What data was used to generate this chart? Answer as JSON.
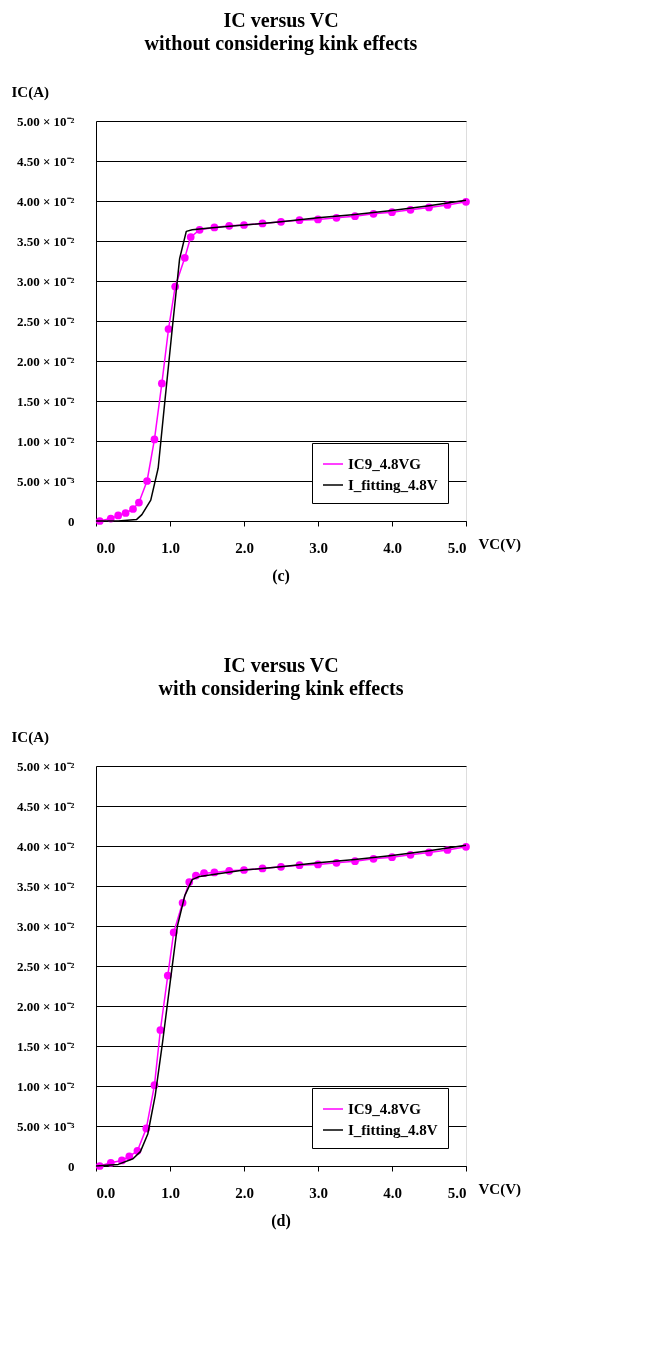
{
  "chart_data": [
    {
      "type": "line",
      "title": "IC versus VC",
      "subtitle": "without considering kink effects",
      "xlabel": "VC(V)",
      "ylabel": "IC(A)",
      "xlim": [
        0,
        5
      ],
      "ylim": [
        0,
        0.05
      ],
      "xticks": [
        {
          "value": 0,
          "label": "0.0"
        },
        {
          "value": 1,
          "label": "1.0"
        },
        {
          "value": 2,
          "label": "2.0"
        },
        {
          "value": 3,
          "label": "3.0"
        },
        {
          "value": 4,
          "label": "4.0"
        },
        {
          "value": 5,
          "label": "5.0"
        }
      ],
      "yticks": [
        0,
        {
          "value": 0.005,
          "label": "5.00 × 10⁻³"
        },
        {
          "value": 0.01,
          "label": "1.00 × 10⁻²"
        },
        {
          "value": 0.015,
          "label": "1.50 × 10⁻²"
        },
        {
          "value": 0.02,
          "label": "2.00 × 10⁻²"
        },
        {
          "value": 0.025,
          "label": "2.50 × 10⁻²"
        },
        {
          "value": 0.03,
          "label": "3.00 × 10⁻²"
        },
        {
          "value": 0.035,
          "label": "3.50 × 10⁻²"
        },
        {
          "value": 0.04,
          "label": "4.00 × 10⁻²"
        },
        {
          "value": 0.045,
          "label": "4.50 × 10⁻²"
        },
        {
          "value": 0.05,
          "label": "5.00 × 10⁻²"
        }
      ],
      "grid": "y",
      "legend": "bottom right",
      "line_style": "solid",
      "annotations": [
        "(c)"
      ],
      "series": [
        {
          "name": "IC9_4.8VG",
          "color": "#ff00ff",
          "marker": "circle",
          "x": [
            0.05,
            0.2,
            0.3,
            0.4,
            0.5,
            0.58,
            0.69,
            0.79,
            0.89,
            0.98,
            1.07,
            1.2,
            1.28,
            1.4,
            1.6,
            1.8,
            2.0,
            2.25,
            2.5,
            2.75,
            3.0,
            3.25,
            3.5,
            3.75,
            4.0,
            4.25,
            4.5,
            4.75,
            5.0
          ],
          "values": [
            0,
            0.0003,
            0.0007,
            0.001,
            0.0015,
            0.0023,
            0.005,
            0.0102,
            0.0172,
            0.024,
            0.0293,
            0.0329,
            0.0355,
            0.0364,
            0.0367,
            0.0369,
            0.037,
            0.0372,
            0.0374,
            0.0376,
            0.0377,
            0.0379,
            0.0381,
            0.0384,
            0.0386,
            0.0389,
            0.0392,
            0.0395,
            0.0399
          ]
        },
        {
          "name": "I_fitting_4.8V",
          "color": "#000000",
          "marker": "none",
          "x": [
            0.0,
            0.3,
            0.55,
            0.62,
            0.74,
            0.84,
            0.92,
            1.03,
            1.13,
            1.22,
            1.3,
            1.5,
            2.0,
            2.5,
            3.0,
            3.5,
            4.0,
            4.5,
            5.0
          ],
          "values": [
            0,
            0,
            0.0002,
            0.0008,
            0.0026,
            0.0066,
            0.014,
            0.024,
            0.0328,
            0.0362,
            0.0364,
            0.0366,
            0.037,
            0.0374,
            0.0379,
            0.0383,
            0.0388,
            0.0394,
            0.0401
          ]
        }
      ]
    },
    {
      "type": "line",
      "title": "IC versus VC",
      "subtitle": "with considering kink effects",
      "xlabel": "VC(V)",
      "ylabel": "IC(A)",
      "xlim": [
        0,
        5
      ],
      "ylim": [
        0,
        0.05
      ],
      "xticks": [
        {
          "value": 0,
          "label": "0.0"
        },
        {
          "value": 1,
          "label": "1.0"
        },
        {
          "value": 2,
          "label": "2.0"
        },
        {
          "value": 3,
          "label": "3.0"
        },
        {
          "value": 4,
          "label": "4.0"
        },
        {
          "value": 5,
          "label": "5.0"
        }
      ],
      "yticks": [
        0,
        {
          "value": 0.005,
          "label": "5.00 × 10⁻³"
        },
        {
          "value": 0.01,
          "label": "1.00 × 10⁻²"
        },
        {
          "value": 0.015,
          "label": "1.50 × 10⁻²"
        },
        {
          "value": 0.02,
          "label": "2.00 × 10⁻²"
        },
        {
          "value": 0.025,
          "label": "2.50 × 10⁻²"
        },
        {
          "value": 0.03,
          "label": "3.00 × 10⁻²"
        },
        {
          "value": 0.035,
          "label": "3.50 × 10⁻²"
        },
        {
          "value": 0.04,
          "label": "4.00 × 10⁻²"
        },
        {
          "value": 0.045,
          "label": "4.50 × 10⁻²"
        },
        {
          "value": 0.05,
          "label": "5.00 × 10⁻²"
        }
      ],
      "grid": "y",
      "legend": "bottom right",
      "line_style": "solid",
      "annotations": [
        "(d)"
      ],
      "series": [
        {
          "name": "IC9_4.8VG",
          "color": "#ff00ff",
          "marker": "circle",
          "x": [
            0.05,
            0.2,
            0.35,
            0.45,
            0.56,
            0.68,
            0.79,
            0.87,
            0.97,
            1.05,
            1.17,
            1.26,
            1.35,
            1.46,
            1.6,
            1.8,
            2.0,
            2.25,
            2.5,
            2.75,
            3.0,
            3.25,
            3.5,
            3.75,
            4.0,
            4.25,
            4.5,
            4.75,
            5.0
          ],
          "values": [
            0,
            0.0004,
            0.0007,
            0.0012,
            0.0019,
            0.0047,
            0.0101,
            0.017,
            0.0238,
            0.0292,
            0.0329,
            0.0355,
            0.0363,
            0.0366,
            0.0367,
            0.0369,
            0.037,
            0.0372,
            0.0374,
            0.0376,
            0.0377,
            0.0379,
            0.0381,
            0.0384,
            0.0386,
            0.0389,
            0.0392,
            0.0395,
            0.0399
          ]
        },
        {
          "name": "I_fitting_4.8V",
          "color": "#000000",
          "marker": "none",
          "x": [
            0,
            0.3,
            0.5,
            0.6,
            0.7,
            0.8,
            0.9,
            1.0,
            1.1,
            1.2,
            1.3,
            1.4,
            2.0,
            2.5,
            3.0,
            3.5,
            4.0,
            4.5,
            5.0
          ],
          "values": [
            0,
            0.0002,
            0.0009,
            0.0018,
            0.004,
            0.0088,
            0.0155,
            0.0228,
            0.03,
            0.0338,
            0.0358,
            0.0362,
            0.037,
            0.0374,
            0.0379,
            0.0383,
            0.0388,
            0.0394,
            0.0401
          ]
        }
      ]
    }
  ]
}
